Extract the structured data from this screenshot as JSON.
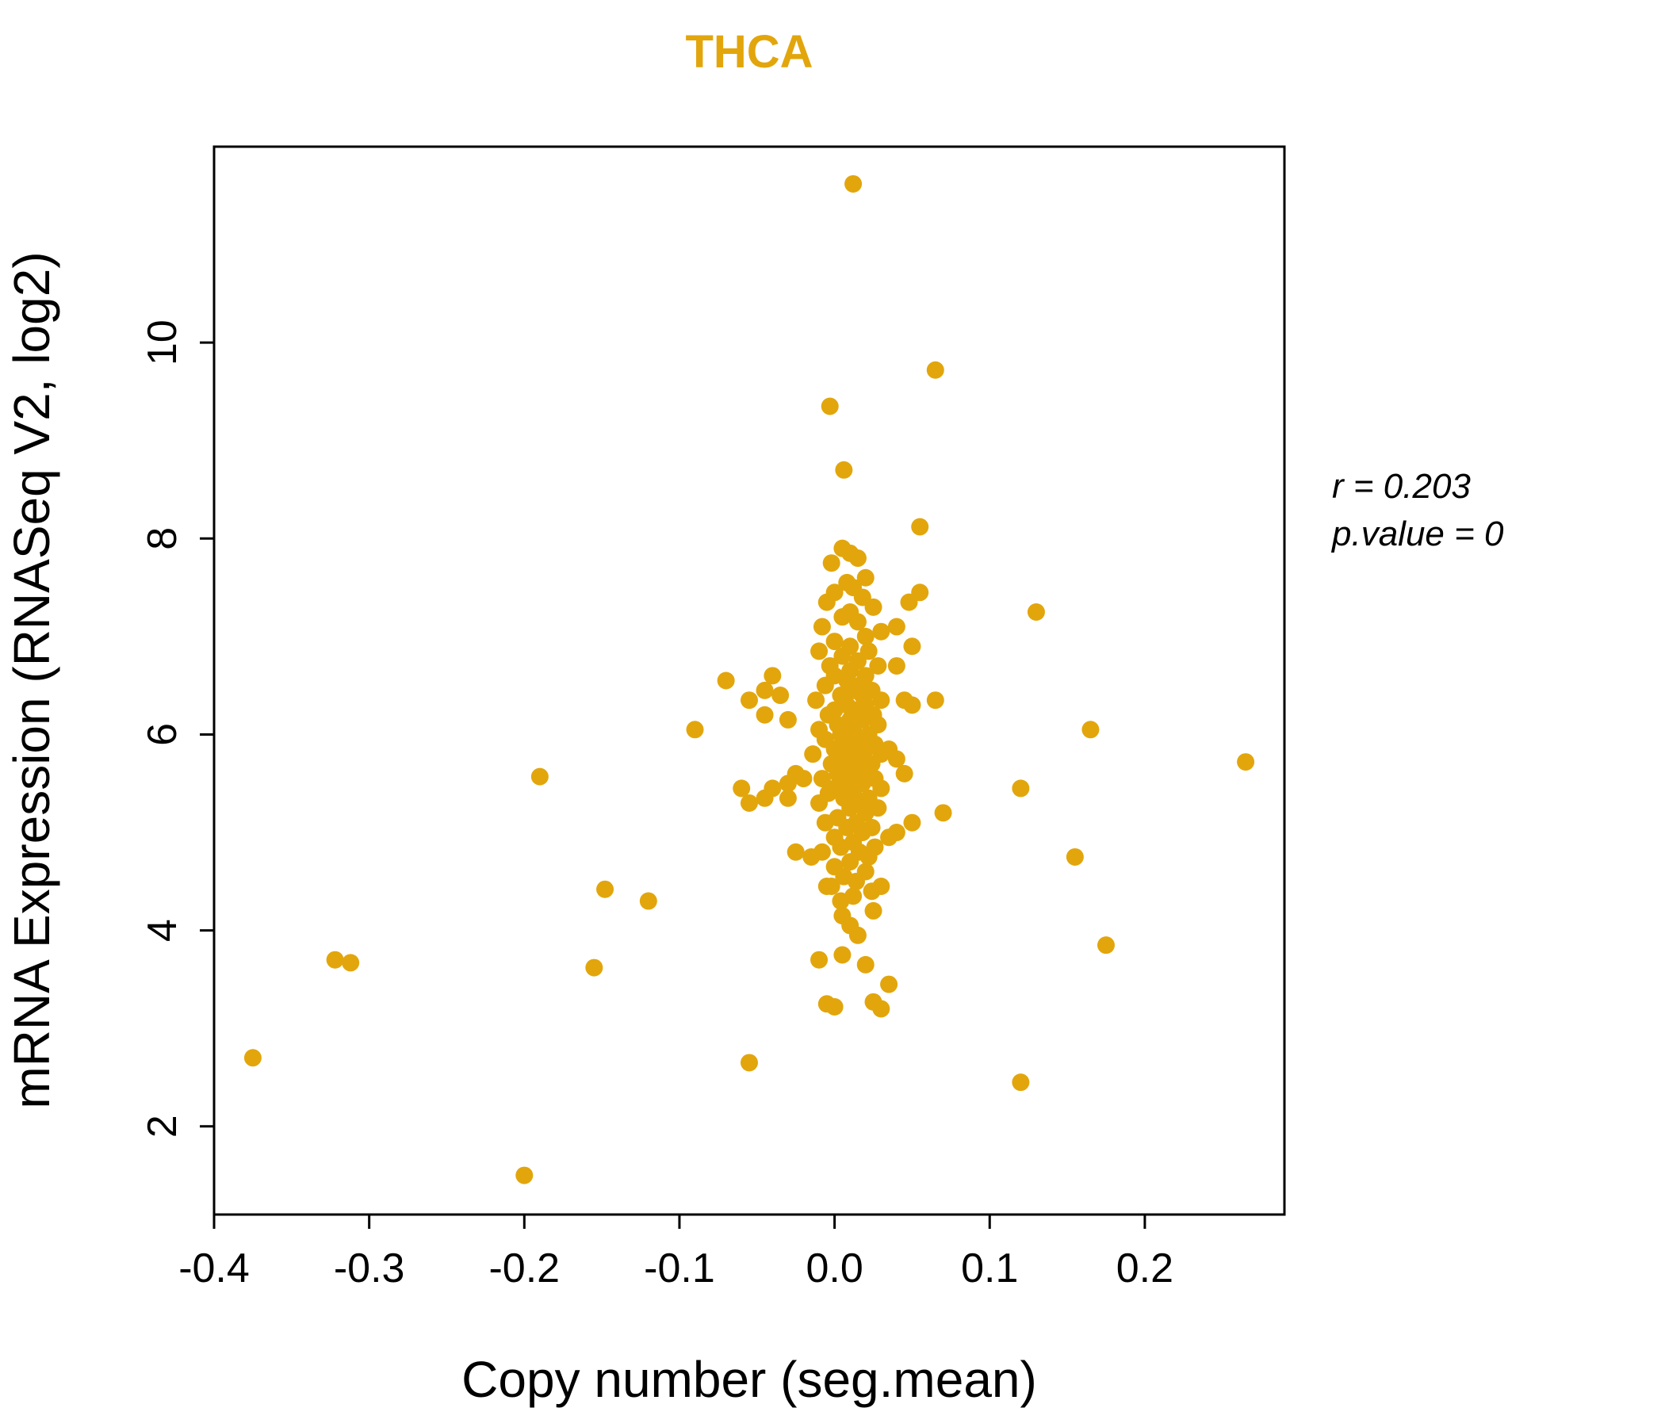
{
  "page": {
    "background": "#ffffff"
  },
  "chart_data": {
    "type": "scatter",
    "title": "THCA",
    "title_color": "#E2A60C",
    "point_color": "#E2A60C",
    "point_radius_px": 11,
    "xlabel": "Copy number (seg.mean)",
    "ylabel": "mRNA Expression (RNASeq V2, log2)",
    "annotation": {
      "line1": "r = 0.203",
      "line2": "p.value = 0"
    },
    "xlim": [
      -0.4,
      0.29
    ],
    "ylim": [
      1.1,
      12.0
    ],
    "xticks": [
      -0.4,
      -0.3,
      -0.2,
      -0.1,
      0.0,
      0.1,
      0.2
    ],
    "xtick_labels": [
      "-0.4",
      "-0.3",
      "-0.2",
      "-0.1",
      "0.0",
      "0.1",
      "0.2"
    ],
    "yticks": [
      2,
      4,
      6,
      8,
      10
    ],
    "ytick_labels": [
      "2",
      "4",
      "6",
      "8",
      "10"
    ],
    "grid": false,
    "legend_position": "none",
    "points": [
      [
        0.005,
        7.9
      ],
      [
        0.01,
        7.85
      ],
      [
        0.015,
        7.8
      ],
      [
        -0.002,
        7.75
      ],
      [
        0.02,
        7.6
      ],
      [
        0.008,
        7.55
      ],
      [
        0.012,
        7.5
      ],
      [
        0.0,
        7.45
      ],
      [
        0.018,
        7.4
      ],
      [
        -0.005,
        7.35
      ],
      [
        0.025,
        7.3
      ],
      [
        0.01,
        7.25
      ],
      [
        0.005,
        7.2
      ],
      [
        0.015,
        7.15
      ],
      [
        -0.008,
        7.1
      ],
      [
        0.03,
        7.05
      ],
      [
        0.02,
        7.0
      ],
      [
        0.0,
        6.95
      ],
      [
        0.01,
        6.9
      ],
      [
        0.022,
        6.85
      ],
      [
        -0.01,
        6.85
      ],
      [
        0.005,
        6.8
      ],
      [
        0.015,
        6.75
      ],
      [
        0.028,
        6.7
      ],
      [
        -0.003,
        6.7
      ],
      [
        0.01,
        6.65
      ],
      [
        0.02,
        6.6
      ],
      [
        0.0,
        6.6
      ],
      [
        0.008,
        6.55
      ],
      [
        0.016,
        6.5
      ],
      [
        -0.006,
        6.5
      ],
      [
        0.024,
        6.45
      ],
      [
        0.012,
        6.45
      ],
      [
        0.004,
        6.4
      ],
      [
        0.018,
        6.4
      ],
      [
        -0.012,
        6.35
      ],
      [
        0.03,
        6.35
      ],
      [
        0.008,
        6.3
      ],
      [
        0.02,
        6.3
      ],
      [
        0.0,
        6.25
      ],
      [
        0.014,
        6.25
      ],
      [
        -0.004,
        6.2
      ],
      [
        0.025,
        6.2
      ],
      [
        0.01,
        6.15
      ],
      [
        0.018,
        6.15
      ],
      [
        0.002,
        6.1
      ],
      [
        0.028,
        6.1
      ],
      [
        -0.01,
        6.05
      ],
      [
        0.012,
        6.05
      ],
      [
        0.022,
        6.0
      ],
      [
        0.004,
        6.0
      ],
      [
        0.016,
        5.95
      ],
      [
        -0.006,
        5.95
      ],
      [
        0.026,
        5.9
      ],
      [
        0.008,
        5.9
      ],
      [
        0.02,
        5.85
      ],
      [
        0.0,
        5.85
      ],
      [
        0.012,
        5.8
      ],
      [
        -0.014,
        5.8
      ],
      [
        0.03,
        5.8
      ],
      [
        0.006,
        5.75
      ],
      [
        0.018,
        5.75
      ],
      [
        -0.002,
        5.7
      ],
      [
        0.024,
        5.7
      ],
      [
        0.01,
        5.65
      ],
      [
        0.02,
        5.65
      ],
      [
        0.002,
        5.6
      ],
      [
        0.014,
        5.6
      ],
      [
        -0.008,
        5.55
      ],
      [
        0.026,
        5.55
      ],
      [
        0.008,
        5.5
      ],
      [
        0.018,
        5.5
      ],
      [
        0.0,
        5.45
      ],
      [
        0.03,
        5.45
      ],
      [
        0.012,
        5.4
      ],
      [
        -0.004,
        5.4
      ],
      [
        0.022,
        5.35
      ],
      [
        0.006,
        5.35
      ],
      [
        0.016,
        5.3
      ],
      [
        -0.01,
        5.3
      ],
      [
        0.028,
        5.25
      ],
      [
        0.01,
        5.25
      ],
      [
        0.02,
        5.2
      ],
      [
        0.002,
        5.15
      ],
      [
        0.014,
        5.1
      ],
      [
        -0.006,
        5.1
      ],
      [
        0.024,
        5.05
      ],
      [
        0.008,
        5.05
      ],
      [
        0.018,
        5.0
      ],
      [
        0.0,
        4.95
      ],
      [
        0.012,
        4.9
      ],
      [
        0.026,
        4.85
      ],
      [
        0.004,
        4.85
      ],
      [
        0.016,
        4.8
      ],
      [
        -0.008,
        4.8
      ],
      [
        0.022,
        4.75
      ],
      [
        0.01,
        4.7
      ],
      [
        0.0,
        4.65
      ],
      [
        0.02,
        4.6
      ],
      [
        0.006,
        4.55
      ],
      [
        0.014,
        4.5
      ],
      [
        -0.002,
        4.45
      ],
      [
        0.024,
        4.4
      ],
      [
        0.012,
        4.35
      ],
      [
        0.004,
        4.3
      ],
      [
        -0.035,
        6.4
      ],
      [
        -0.03,
        6.15
      ],
      [
        -0.04,
        5.45
      ],
      [
        -0.045,
        5.35
      ],
      [
        -0.03,
        5.5
      ],
      [
        -0.025,
        4.8
      ],
      [
        -0.02,
        5.55
      ],
      [
        -0.025,
        5.6
      ],
      [
        -0.03,
        5.35
      ],
      [
        -0.015,
        4.75
      ],
      [
        0.04,
        6.7
      ],
      [
        0.045,
        6.35
      ],
      [
        0.05,
        6.3
      ],
      [
        0.04,
        5.75
      ],
      [
        0.045,
        5.6
      ],
      [
        0.05,
        5.1
      ],
      [
        0.04,
        5.0
      ],
      [
        0.035,
        4.95
      ],
      [
        0.055,
        7.45
      ],
      [
        0.04,
        7.1
      ],
      [
        0.05,
        6.9
      ],
      [
        0.065,
        6.35
      ],
      [
        0.035,
        3.45
      ],
      [
        0.03,
        3.2
      ],
      [
        0.025,
        3.27
      ],
      [
        -0.005,
        3.25
      ],
      [
        0.0,
        3.22
      ],
      [
        -0.01,
        3.7
      ],
      [
        0.005,
        3.75
      ],
      [
        0.02,
        3.65
      ],
      [
        0.01,
        4.05
      ],
      [
        0.015,
        3.95
      ],
      [
        0.005,
        4.15
      ],
      [
        0.025,
        4.2
      ],
      [
        -0.005,
        4.45
      ],
      [
        -0.04,
        6.6
      ],
      [
        -0.055,
        6.35
      ],
      [
        -0.045,
        6.2
      ],
      [
        0.03,
        4.45
      ],
      [
        0.035,
        5.85
      ],
      [
        0.012,
        11.62
      ],
      [
        0.065,
        9.72
      ],
      [
        -0.003,
        9.35
      ],
      [
        0.006,
        8.7
      ],
      [
        0.055,
        8.12
      ],
      [
        0.13,
        7.25
      ],
      [
        0.165,
        6.05
      ],
      [
        0.265,
        5.72
      ],
      [
        0.12,
        5.45
      ],
      [
        0.155,
        4.75
      ],
      [
        0.175,
        3.85
      ],
      [
        0.12,
        2.45
      ],
      [
        -0.055,
        2.65
      ],
      [
        -0.2,
        1.5
      ],
      [
        -0.375,
        2.7
      ],
      [
        -0.322,
        3.7
      ],
      [
        -0.312,
        3.67
      ],
      [
        -0.19,
        5.57
      ],
      [
        -0.155,
        3.62
      ],
      [
        -0.148,
        4.42
      ],
      [
        -0.12,
        4.3
      ],
      [
        -0.09,
        6.05
      ],
      [
        -0.07,
        6.55
      ],
      [
        -0.045,
        6.45
      ],
      [
        -0.06,
        5.45
      ],
      [
        -0.055,
        5.3
      ],
      [
        0.07,
        5.2
      ],
      [
        0.048,
        7.35
      ]
    ]
  }
}
